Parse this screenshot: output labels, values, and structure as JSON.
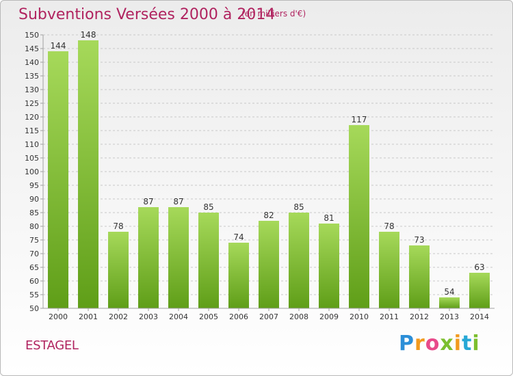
{
  "header": {
    "title": "Subventions Versées 2000 à 2014",
    "subtitle": "(en milliers d'€)"
  },
  "commune": "ESTAGEL",
  "logo": {
    "text": "Proxiti",
    "colors": [
      "#2c8fd8",
      "#f29a1e",
      "#e84a8a",
      "#7cbf2e",
      "#27a8d6"
    ]
  },
  "chart_data": {
    "type": "bar",
    "categories": [
      "2000",
      "2001",
      "2002",
      "2003",
      "2004",
      "2005",
      "2006",
      "2007",
      "2008",
      "2009",
      "2010",
      "2011",
      "2012",
      "2013",
      "2014"
    ],
    "values": [
      144,
      148,
      78,
      87,
      87,
      85,
      74,
      82,
      85,
      81,
      117,
      78,
      73,
      54,
      63
    ],
    "data_labels": [
      "144",
      "148",
      "78",
      "87",
      "87",
      "85",
      "74",
      "82",
      "85",
      "81",
      "117",
      "78",
      "73",
      "54",
      "63"
    ],
    "title": "Subventions Versées 2000 à 2014",
    "subtitle": "(en milliers d'€)",
    "xlabel": "",
    "ylabel": "",
    "ylim": [
      50,
      150
    ],
    "yticks": [
      50,
      55,
      60,
      65,
      70,
      75,
      80,
      85,
      90,
      95,
      100,
      105,
      110,
      115,
      120,
      125,
      130,
      135,
      140,
      145,
      150
    ],
    "grid": true,
    "bar_color_top": "#a6d95a",
    "bar_color_bottom": "#5f9e18",
    "grid_color": "#c8c8c8",
    "axis_color": "#a0a0a0"
  }
}
